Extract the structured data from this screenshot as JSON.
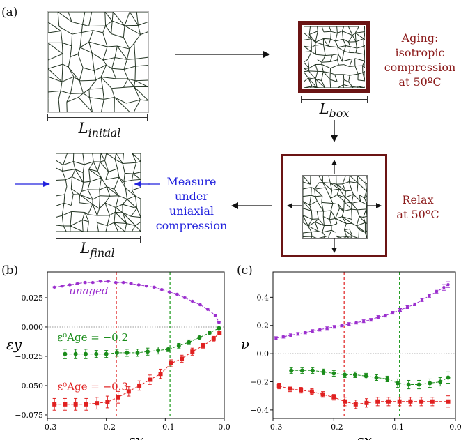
{
  "panels": {
    "a": "(a)",
    "b": "(b)",
    "c": "(c)"
  },
  "schematic": {
    "l_initial": "L_initial",
    "l_box": "L_box",
    "l_final": "L_final",
    "aging_text": [
      "Aging:",
      "isotropic",
      "compression",
      "at 50ºC"
    ],
    "relax_text": [
      "Relax",
      "at 50ºC"
    ],
    "measure_text": [
      "Measure",
      "under",
      "uniaxial",
      "compression"
    ],
    "colors": {
      "frame": "#6b1414",
      "aging": "#8b1a1a",
      "measure": "#2222dd",
      "network": "#223322"
    }
  },
  "chart_data": [
    {
      "type": "line",
      "panel": "(b)",
      "xlabel": "εx",
      "ylabel": "εy",
      "xlim": [
        -0.3,
        0.0
      ],
      "ylim": [
        -0.078,
        0.047
      ],
      "xticks": [
        -0.3,
        -0.2,
        -0.1,
        0.0
      ],
      "xtick_labels": [
        "−0.3",
        "−0.2",
        "−0.1",
        "0.0"
      ],
      "yticks": [
        -0.075,
        -0.05,
        -0.025,
        0.0,
        0.025
      ],
      "ytick_labels": [
        "−0.075",
        "−0.050",
        "−0.025",
        "0.000",
        "0.025"
      ],
      "hline": 0.0,
      "vlines": [
        {
          "x": -0.183,
          "color": "#e02020"
        },
        {
          "x": -0.092,
          "color": "#1a9a1a"
        }
      ],
      "series": [
        {
          "name": "unaged",
          "color": "#9b2fce",
          "marker": "circle",
          "x": [
            -0.288,
            -0.275,
            -0.262,
            -0.249,
            -0.236,
            -0.223,
            -0.21,
            -0.197,
            -0.184,
            -0.171,
            -0.158,
            -0.145,
            -0.132,
            -0.119,
            -0.106,
            -0.093,
            -0.08,
            -0.067,
            -0.054,
            -0.041,
            -0.028,
            -0.015,
            -0.009
          ],
          "y": [
            0.034,
            0.035,
            0.036,
            0.037,
            0.038,
            0.038,
            0.039,
            0.039,
            0.038,
            0.038,
            0.037,
            0.036,
            0.035,
            0.034,
            0.032,
            0.03,
            0.028,
            0.025,
            0.022,
            0.019,
            0.015,
            0.01,
            0.004
          ],
          "err": [
            0.0005,
            0.0005,
            0.0005,
            0.0005,
            0.0005,
            0.0005,
            0.0005,
            0.0005,
            0.0005,
            0.0005,
            0.0005,
            0.0005,
            0.0005,
            0.0005,
            0.0005,
            0.0005,
            0.0005,
            0.0005,
            0.0005,
            0.0005,
            0.0005,
            0.0005,
            0.0005
          ]
        },
        {
          "name": "ε⁰Age = −0.2",
          "color": "#1a8c1a",
          "marker": "circle",
          "x": [
            -0.27,
            -0.252,
            -0.235,
            -0.217,
            -0.2,
            -0.182,
            -0.165,
            -0.147,
            -0.13,
            -0.112,
            -0.095,
            -0.077,
            -0.06,
            -0.042,
            -0.025,
            -0.009
          ],
          "y": [
            -0.023,
            -0.023,
            -0.023,
            -0.023,
            -0.023,
            -0.022,
            -0.022,
            -0.022,
            -0.021,
            -0.02,
            -0.019,
            -0.016,
            -0.013,
            -0.009,
            -0.005,
            -0.001
          ],
          "err": [
            0.004,
            0.004,
            0.004,
            0.003,
            0.003,
            0.003,
            0.003,
            0.003,
            0.003,
            0.003,
            0.002,
            0.002,
            0.002,
            0.002,
            0.001,
            0.001
          ]
        },
        {
          "name": "ε⁰Age = −0.3",
          "color": "#e02020",
          "marker": "square",
          "x": [
            -0.288,
            -0.27,
            -0.252,
            -0.234,
            -0.216,
            -0.198,
            -0.18,
            -0.162,
            -0.144,
            -0.126,
            -0.108,
            -0.09,
            -0.072,
            -0.054,
            -0.036,
            -0.018,
            -0.008
          ],
          "y": [
            -0.066,
            -0.066,
            -0.066,
            -0.066,
            -0.065,
            -0.064,
            -0.06,
            -0.055,
            -0.05,
            -0.045,
            -0.04,
            -0.031,
            -0.027,
            -0.021,
            -0.016,
            -0.01,
            -0.005
          ],
          "err": [
            0.005,
            0.005,
            0.005,
            0.005,
            0.005,
            0.005,
            0.005,
            0.004,
            0.004,
            0.004,
            0.004,
            0.003,
            0.003,
            0.003,
            0.002,
            0.002,
            0.001
          ]
        }
      ]
    },
    {
      "type": "line",
      "panel": "(c)",
      "xlabel": "εx",
      "ylabel": "ν",
      "xlim": [
        -0.3,
        0.0
      ],
      "ylim": [
        -0.46,
        0.58
      ],
      "xticks": [
        -0.3,
        -0.2,
        -0.1,
        0.0
      ],
      "xtick_labels": [
        "−0.3",
        "−0.2",
        "−0.1",
        "0.0"
      ],
      "yticks": [
        -0.4,
        -0.2,
        0.0,
        0.2,
        0.4
      ],
      "ytick_labels": [
        "−0.4",
        "−0.2",
        "0.0",
        "0.2",
        "0.4"
      ],
      "hline": 0.0,
      "vlines": [
        {
          "x": -0.183,
          "color": "#e02020"
        },
        {
          "x": -0.092,
          "color": "#1a9a1a"
        }
      ],
      "series": [
        {
          "name": "unaged",
          "color": "#9b2fce",
          "marker": "circle",
          "x": [
            -0.295,
            -0.283,
            -0.271,
            -0.259,
            -0.247,
            -0.235,
            -0.223,
            -0.211,
            -0.199,
            -0.187,
            -0.175,
            -0.163,
            -0.151,
            -0.139,
            -0.127,
            -0.115,
            -0.103,
            -0.091,
            -0.079,
            -0.067,
            -0.055,
            -0.043,
            -0.031,
            -0.019,
            -0.012
          ],
          "y": [
            0.11,
            0.12,
            0.13,
            0.14,
            0.15,
            0.16,
            0.17,
            0.18,
            0.19,
            0.2,
            0.21,
            0.22,
            0.23,
            0.24,
            0.26,
            0.27,
            0.29,
            0.31,
            0.33,
            0.35,
            0.38,
            0.41,
            0.44,
            0.47,
            0.49
          ],
          "err": [
            0.01,
            0.01,
            0.01,
            0.01,
            0.01,
            0.01,
            0.01,
            0.01,
            0.01,
            0.01,
            0.01,
            0.01,
            0.01,
            0.01,
            0.01,
            0.01,
            0.01,
            0.01,
            0.01,
            0.01,
            0.01,
            0.01,
            0.01,
            0.02,
            0.02
          ]
        },
        {
          "name": "ε⁰Age = −0.2",
          "color": "#1a8c1a",
          "marker": "circle",
          "x": [
            -0.27,
            -0.252,
            -0.235,
            -0.217,
            -0.2,
            -0.182,
            -0.165,
            -0.147,
            -0.13,
            -0.112,
            -0.095,
            -0.077,
            -0.06,
            -0.042,
            -0.025,
            -0.012
          ],
          "y": [
            -0.12,
            -0.12,
            -0.12,
            -0.13,
            -0.14,
            -0.15,
            -0.15,
            -0.16,
            -0.17,
            -0.18,
            -0.21,
            -0.22,
            -0.22,
            -0.21,
            -0.2,
            -0.17
          ],
          "err": [
            0.02,
            0.02,
            0.02,
            0.02,
            0.02,
            0.02,
            0.02,
            0.02,
            0.02,
            0.02,
            0.03,
            0.03,
            0.03,
            0.03,
            0.03,
            0.04
          ]
        },
        {
          "name": "ε⁰Age = −0.3",
          "color": "#e02020",
          "marker": "square",
          "x": [
            -0.29,
            -0.272,
            -0.254,
            -0.236,
            -0.218,
            -0.2,
            -0.182,
            -0.164,
            -0.146,
            -0.128,
            -0.11,
            -0.092,
            -0.074,
            -0.056,
            -0.038,
            -0.012
          ],
          "y": [
            -0.23,
            -0.25,
            -0.26,
            -0.27,
            -0.29,
            -0.31,
            -0.34,
            -0.36,
            -0.35,
            -0.34,
            -0.34,
            -0.34,
            -0.34,
            -0.34,
            -0.34,
            -0.34
          ],
          "err": [
            0.02,
            0.02,
            0.02,
            0.02,
            0.02,
            0.02,
            0.03,
            0.03,
            0.03,
            0.03,
            0.03,
            0.03,
            0.03,
            0.03,
            0.03,
            0.04
          ]
        }
      ],
      "annotations": []
    }
  ],
  "annotations_b": [
    {
      "text": "unaged",
      "color": "#9b2fce",
      "x": -0.263,
      "y": 0.028,
      "italic": true
    },
    {
      "text": "ε⁰Age = −0.2",
      "color": "#1a8c1a",
      "x": -0.283,
      "y": -0.012
    },
    {
      "text": "ε⁰Age = −0.3",
      "color": "#e02020",
      "x": -0.283,
      "y": -0.054
    }
  ]
}
